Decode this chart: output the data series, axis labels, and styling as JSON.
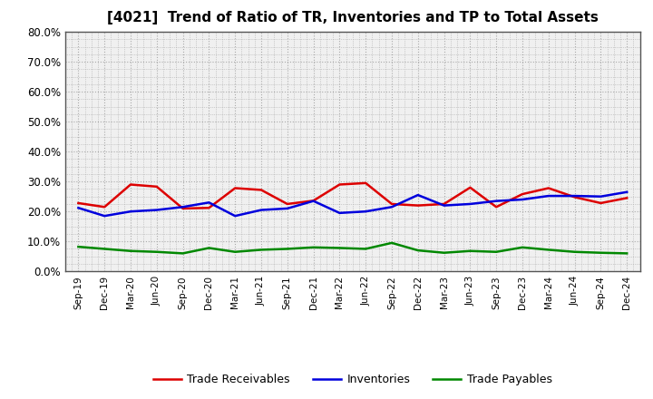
{
  "title": "[4021]  Trend of Ratio of TR, Inventories and TP to Total Assets",
  "x_labels": [
    "Sep-19",
    "Dec-19",
    "Mar-20",
    "Jun-20",
    "Sep-20",
    "Dec-20",
    "Mar-21",
    "Jun-21",
    "Sep-21",
    "Dec-21",
    "Mar-22",
    "Jun-22",
    "Sep-22",
    "Dec-22",
    "Mar-23",
    "Jun-23",
    "Sep-23",
    "Dec-23",
    "Mar-24",
    "Jun-24",
    "Sep-24",
    "Dec-24"
  ],
  "trade_receivables": [
    0.228,
    0.215,
    0.29,
    0.283,
    0.21,
    0.212,
    0.278,
    0.272,
    0.225,
    0.236,
    0.29,
    0.295,
    0.225,
    0.22,
    0.225,
    0.28,
    0.215,
    0.258,
    0.278,
    0.248,
    0.228,
    0.245
  ],
  "inventories": [
    0.212,
    0.185,
    0.2,
    0.205,
    0.215,
    0.23,
    0.185,
    0.205,
    0.21,
    0.235,
    0.195,
    0.2,
    0.215,
    0.255,
    0.22,
    0.225,
    0.235,
    0.24,
    0.252,
    0.252,
    0.25,
    0.265
  ],
  "trade_payables": [
    0.082,
    0.075,
    0.068,
    0.065,
    0.06,
    0.078,
    0.065,
    0.072,
    0.075,
    0.08,
    0.078,
    0.075,
    0.095,
    0.07,
    0.062,
    0.068,
    0.065,
    0.08,
    0.072,
    0.065,
    0.062,
    0.06
  ],
  "tr_color": "#dd0000",
  "inv_color": "#0000dd",
  "tp_color": "#008800",
  "ylim": [
    0.0,
    0.8
  ],
  "yticks": [
    0.0,
    0.1,
    0.2,
    0.3,
    0.4,
    0.5,
    0.6,
    0.7,
    0.8
  ],
  "bg_color": "#ffffff",
  "plot_bg_color": "#f0f0f0",
  "grid_color": "#aaaaaa",
  "legend_labels": [
    "Trade Receivables",
    "Inventories",
    "Trade Payables"
  ]
}
